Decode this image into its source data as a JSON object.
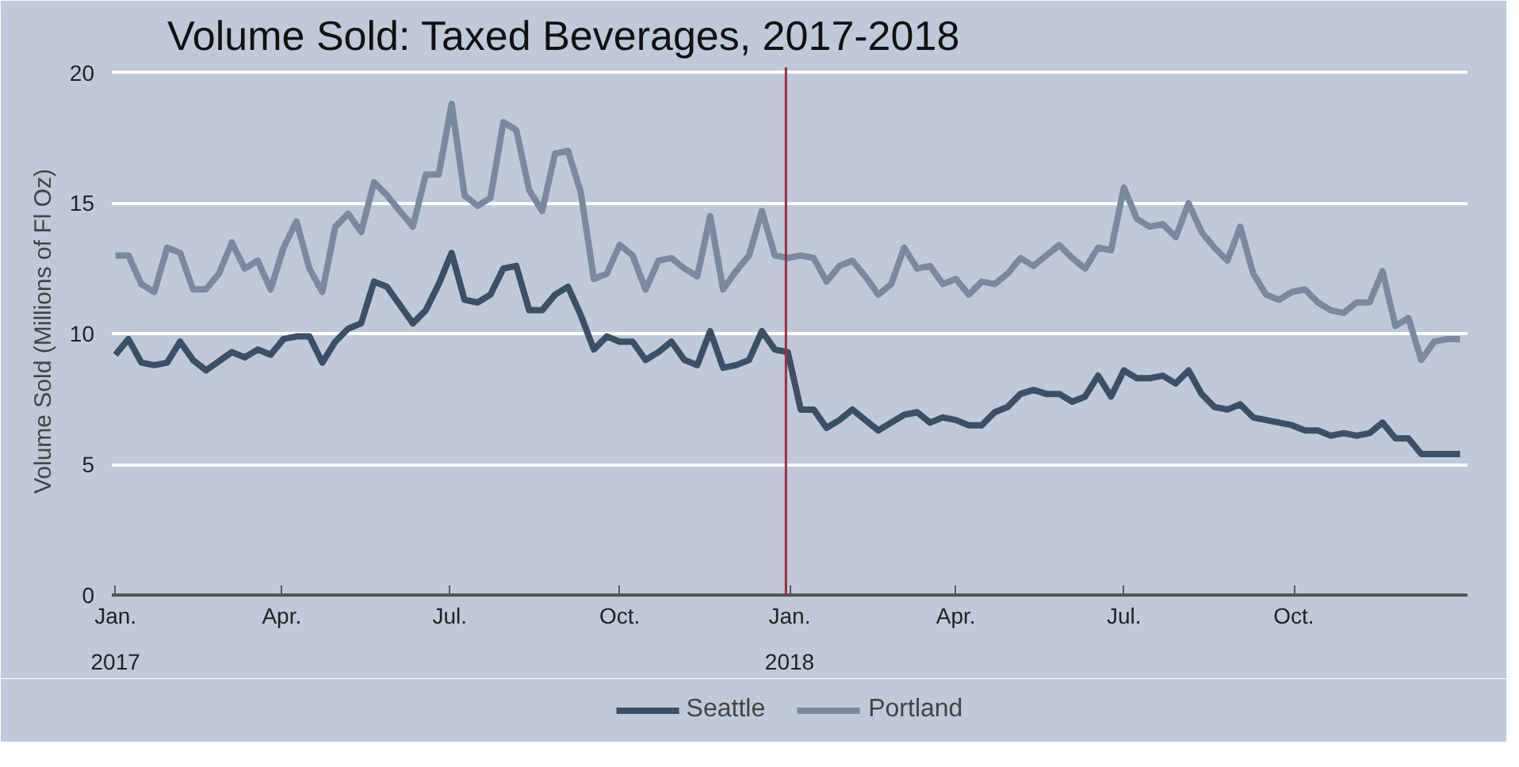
{
  "chart_data": {
    "type": "line",
    "title": "Volume Sold: Taxed Beverages, 2017-2018",
    "ylabel": "Volume Sold (Millions of Fl Oz)",
    "x": [
      "2017-01-01",
      "2017-01-08",
      "2017-01-15",
      "2017-01-22",
      "2017-01-29",
      "2017-02-05",
      "2017-02-12",
      "2017-02-19",
      "2017-02-26",
      "2017-03-05",
      "2017-03-12",
      "2017-03-19",
      "2017-03-26",
      "2017-04-02",
      "2017-04-09",
      "2017-04-16",
      "2017-04-23",
      "2017-04-30",
      "2017-05-07",
      "2017-05-14",
      "2017-05-21",
      "2017-05-28",
      "2017-06-04",
      "2017-06-11",
      "2017-06-18",
      "2017-06-25",
      "2017-07-02",
      "2017-07-09",
      "2017-07-16",
      "2017-07-23",
      "2017-07-30",
      "2017-08-06",
      "2017-08-13",
      "2017-08-20",
      "2017-08-27",
      "2017-09-03",
      "2017-09-10",
      "2017-09-17",
      "2017-09-24",
      "2017-10-01",
      "2017-10-08",
      "2017-10-15",
      "2017-10-22",
      "2017-10-29",
      "2017-11-05",
      "2017-11-12",
      "2017-11-19",
      "2017-11-26",
      "2017-12-03",
      "2017-12-10",
      "2017-12-17",
      "2017-12-24",
      "2017-12-31",
      "2018-01-07",
      "2018-01-14",
      "2018-01-21",
      "2018-01-28",
      "2018-02-04",
      "2018-02-11",
      "2018-02-18",
      "2018-02-25",
      "2018-03-04",
      "2018-03-11",
      "2018-03-18",
      "2018-03-25",
      "2018-04-01",
      "2018-04-08",
      "2018-04-15",
      "2018-04-22",
      "2018-04-29",
      "2018-05-06",
      "2018-05-13",
      "2018-05-20",
      "2018-05-27",
      "2018-06-03",
      "2018-06-10",
      "2018-06-17",
      "2018-06-24",
      "2018-07-01",
      "2018-07-08",
      "2018-07-15",
      "2018-07-22",
      "2018-07-29",
      "2018-08-05",
      "2018-08-12",
      "2018-08-19",
      "2018-08-26",
      "2018-09-02",
      "2018-09-09",
      "2018-09-16",
      "2018-09-23",
      "2018-09-30",
      "2018-10-07",
      "2018-10-14",
      "2018-10-21",
      "2018-10-28",
      "2018-11-04",
      "2018-11-11",
      "2018-11-18",
      "2018-11-25",
      "2018-12-02",
      "2018-12-09",
      "2018-12-16",
      "2018-12-23",
      "2018-12-30"
    ],
    "series": [
      {
        "name": "Seattle",
        "color": "#3d4f66",
        "values": [
          9.2,
          9.8,
          8.9,
          8.8,
          8.9,
          9.7,
          9.0,
          8.6,
          8.95,
          9.3,
          9.1,
          9.4,
          9.2,
          9.8,
          9.9,
          9.9,
          8.9,
          9.7,
          10.2,
          10.4,
          12.0,
          11.8,
          11.1,
          10.4,
          10.9,
          11.9,
          13.1,
          11.3,
          11.2,
          11.5,
          12.5,
          12.6,
          10.9,
          10.9,
          11.5,
          11.8,
          10.7,
          9.4,
          9.9,
          9.7,
          9.7,
          9.0,
          9.3,
          9.7,
          9.0,
          8.8,
          10.1,
          8.7,
          8.8,
          9.0,
          10.1,
          9.4,
          9.3,
          7.1,
          7.1,
          6.4,
          6.7,
          7.1,
          6.7,
          6.3,
          6.6,
          6.9,
          7.0,
          6.6,
          6.8,
          6.7,
          6.5,
          6.5,
          7.0,
          7.2,
          7.7,
          7.85,
          7.7,
          7.7,
          7.4,
          7.6,
          8.4,
          7.6,
          8.6,
          8.3,
          8.3,
          8.4,
          8.1,
          8.6,
          7.7,
          7.2,
          7.1,
          7.3,
          6.8,
          6.7,
          6.6,
          6.5,
          6.3,
          6.3,
          6.1,
          6.2,
          6.1,
          6.2,
          6.6,
          6.0,
          6.0,
          5.4,
          5.4,
          5.4,
          5.4
        ]
      },
      {
        "name": "Portland",
        "color": "#7a899e",
        "values": [
          13.0,
          13.0,
          11.9,
          11.6,
          13.3,
          13.1,
          11.7,
          11.7,
          12.3,
          13.5,
          12.5,
          12.8,
          11.7,
          13.3,
          14.3,
          12.5,
          11.6,
          14.1,
          14.6,
          13.9,
          15.8,
          15.3,
          14.7,
          14.1,
          16.1,
          16.1,
          18.8,
          15.3,
          14.9,
          15.2,
          18.1,
          17.8,
          15.5,
          14.7,
          16.9,
          17.0,
          15.4,
          12.1,
          12.3,
          13.4,
          13.0,
          11.7,
          12.8,
          12.9,
          12.5,
          12.2,
          14.5,
          11.7,
          12.4,
          13.0,
          14.7,
          13.0,
          12.9,
          13.0,
          12.9,
          12.0,
          12.6,
          12.8,
          12.2,
          11.5,
          11.9,
          13.3,
          12.5,
          12.6,
          11.9,
          12.1,
          11.5,
          12.0,
          11.9,
          12.3,
          12.9,
          12.6,
          13.0,
          13.4,
          12.9,
          12.5,
          13.3,
          13.2,
          15.6,
          14.4,
          14.1,
          14.2,
          13.7,
          15.0,
          13.9,
          13.3,
          12.8,
          14.1,
          12.3,
          11.5,
          11.3,
          11.6,
          11.7,
          11.2,
          10.9,
          10.8,
          11.2,
          11.2,
          12.4,
          10.3,
          10.6,
          9.0,
          9.7,
          9.8,
          9.8
        ]
      }
    ],
    "xlim": [
      "2016-12-30",
      "2019-01-03"
    ],
    "xticks": [
      {
        "value": "2017-01-01",
        "label": "Jan.\n2017"
      },
      {
        "value": "2017-04-01",
        "label": "Apr."
      },
      {
        "value": "2017-07-01",
        "label": "Jul."
      },
      {
        "value": "2017-10-01",
        "label": "Oct."
      },
      {
        "value": "2018-01-01",
        "label": "Jan.\n2018"
      },
      {
        "value": "2018-04-01",
        "label": "Apr."
      },
      {
        "value": "2018-07-01",
        "label": "Jul."
      },
      {
        "value": "2018-10-01",
        "label": "Oct."
      }
    ],
    "ylim": [
      0,
      20.2
    ],
    "yticks": [
      0,
      5,
      10,
      15,
      20
    ],
    "ref_lines": [
      {
        "axis": "x",
        "value": "2017-12-30",
        "color": "#9e2a47"
      }
    ],
    "grid": "y",
    "legend": "bottom"
  }
}
